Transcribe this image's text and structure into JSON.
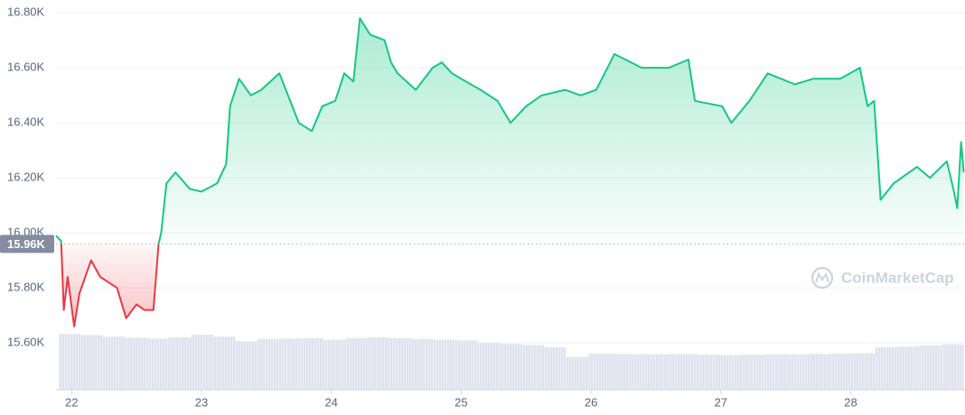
{
  "chart_data": {
    "type": "line",
    "xlim": [
      21.88,
      28.88
    ],
    "xticks": [
      22,
      23,
      24,
      25,
      26,
      27,
      28
    ],
    "ylim": [
      15430,
      16830
    ],
    "yticks": [
      {
        "value": 15600,
        "label": "15.60K"
      },
      {
        "value": 15800,
        "label": "15.80K"
      },
      {
        "value": 16000,
        "label": "16.00K"
      },
      {
        "value": 16200,
        "label": "16.20K"
      },
      {
        "value": 16400,
        "label": "16.40K"
      },
      {
        "value": 16600,
        "label": "16.60K"
      },
      {
        "value": 16800,
        "label": "16.80K"
      }
    ],
    "grid": true,
    "baseline": {
      "value": 15960,
      "label": "15.96K"
    },
    "up_color": "#16c784",
    "down_color": "#ea3943",
    "price": {
      "x": [
        21.88,
        21.92,
        21.94,
        21.97,
        22.02,
        22.06,
        22.15,
        22.22,
        22.35,
        22.42,
        22.5,
        22.56,
        22.63,
        22.67,
        22.69,
        22.73,
        22.8,
        22.91,
        23.0,
        23.12,
        23.19,
        23.22,
        23.29,
        23.38,
        23.46,
        23.6,
        23.75,
        23.85,
        23.93,
        24.03,
        24.1,
        24.17,
        24.22,
        24.3,
        24.41,
        24.46,
        24.51,
        24.65,
        24.78,
        24.85,
        24.93,
        25.0,
        25.15,
        25.28,
        25.38,
        25.5,
        25.62,
        25.8,
        25.92,
        26.04,
        26.18,
        26.39,
        26.6,
        26.75,
        26.8,
        27.01,
        27.08,
        27.22,
        27.36,
        27.57,
        27.71,
        27.92,
        28.07,
        28.13,
        28.18,
        28.23,
        28.33,
        28.51,
        28.61,
        28.74,
        28.79,
        28.82,
        28.85,
        28.87
      ],
      "values": [
        15990,
        15970,
        15720,
        15840,
        15660,
        15780,
        15900,
        15840,
        15800,
        15690,
        15740,
        15720,
        15720,
        15960,
        16000,
        16180,
        16220,
        16160,
        16150,
        16180,
        16250,
        16460,
        16560,
        16500,
        16520,
        16580,
        16400,
        16370,
        16460,
        16480,
        16580,
        16550,
        16780,
        16720,
        16700,
        16620,
        16580,
        16520,
        16600,
        16620,
        16580,
        16560,
        16520,
        16480,
        16400,
        16460,
        16500,
        16520,
        16500,
        16520,
        16650,
        16600,
        16600,
        16630,
        16480,
        16460,
        16400,
        16480,
        16580,
        16540,
        16560,
        16560,
        16600,
        16460,
        16480,
        16120,
        16180,
        16240,
        16200,
        16260,
        16160,
        16090,
        16330,
        16220
      ]
    },
    "y2lim": [
      0,
      100
    ],
    "volume": {
      "axis": "y2",
      "color": "#dfe2ee",
      "x": [
        21.9,
        22.07,
        22.24,
        22.41,
        22.58,
        22.75,
        22.92,
        23.09,
        23.26,
        23.43,
        23.6,
        23.77,
        23.94,
        24.11,
        24.28,
        24.45,
        24.62,
        24.79,
        24.96,
        25.13,
        25.3,
        25.47,
        25.64,
        25.81,
        25.98,
        26.15,
        26.32,
        26.49,
        26.66,
        26.83,
        27.0,
        27.17,
        27.34,
        27.51,
        27.68,
        27.85,
        28.02,
        28.19,
        28.36,
        28.53,
        28.7
      ],
      "values": [
        14.5,
        14.2,
        13.8,
        13.5,
        13.3,
        13.6,
        14.3,
        13.8,
        12.6,
        13.2,
        13.3,
        13.4,
        13.0,
        13.4,
        13.6,
        13.4,
        13.2,
        13.0,
        12.8,
        12.2,
        11.9,
        11.6,
        11.0,
        8.5,
        9.4,
        9.3,
        9.2,
        9.2,
        9.2,
        9.1,
        9.0,
        9.1,
        9.2,
        9.2,
        9.3,
        9.4,
        9.5,
        11.0,
        11.2,
        11.5,
        11.8
      ]
    },
    "watermark": "CoinMarketCap"
  }
}
